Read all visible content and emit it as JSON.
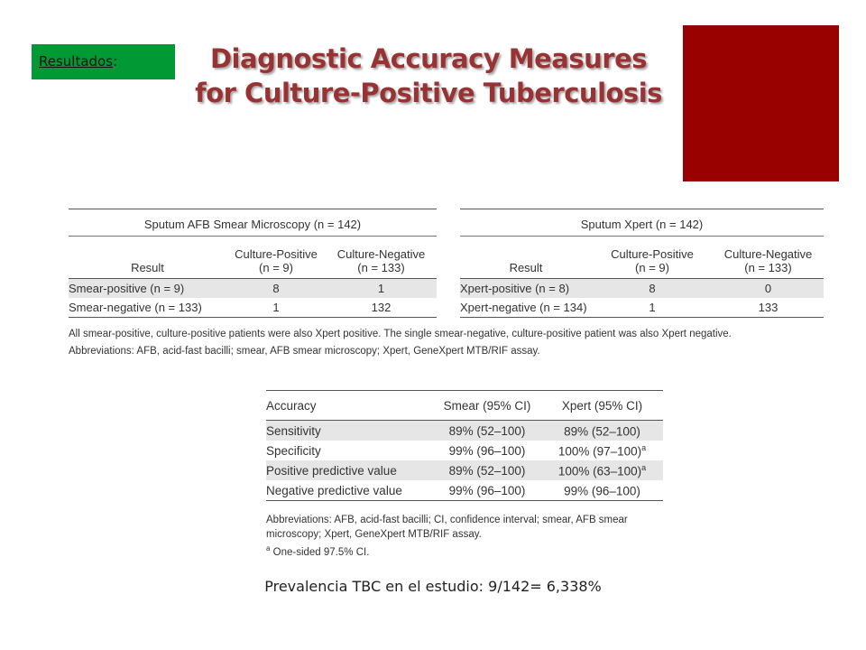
{
  "badge": {
    "label": "Resultados",
    "suffix": ":"
  },
  "title": {
    "line1": "Diagnostic Accuracy Measures",
    "line2": "for Culture-Positive  Tuberculosis"
  },
  "colors": {
    "badge": "#009933",
    "accent_block": "#990000",
    "title": "#993333",
    "row_shade": "#e6e6e6"
  },
  "smear_table": {
    "group_title": "Sputum AFB Smear Microscopy (n = 142)",
    "col_result": "Result",
    "col_pos_1": "Culture-Positive",
    "col_pos_2": "(n = 9)",
    "col_neg_1": "Culture-Negative",
    "col_neg_2": "(n = 133)",
    "rows": [
      {
        "label": "Smear-positive (n = 9)",
        "pos": "8",
        "neg": "1"
      },
      {
        "label": "Smear-negative (n = 133)",
        "pos": "1",
        "neg": "132"
      }
    ]
  },
  "xpert_table": {
    "group_title": "Sputum Xpert (n = 142)",
    "col_result": "Result",
    "col_pos_1": "Culture-Positive",
    "col_pos_2": "(n = 9)",
    "col_neg_1": "Culture-Negative",
    "col_neg_2": "(n = 133)",
    "rows": [
      {
        "label": "Xpert-positive (n = 8)",
        "pos": "8",
        "neg": "0"
      },
      {
        "label": "Xpert-negative (n = 134)",
        "pos": "1",
        "neg": "133"
      }
    ]
  },
  "notes_top": {
    "line1": "All smear-positive, culture-positive patients were also Xpert positive. The single smear-negative, culture-positive patient was also Xpert negative.",
    "line2": "Abbreviations: AFB, acid-fast bacilli; smear, AFB smear microscopy; Xpert, GeneXpert MTB/RIF assay."
  },
  "accuracy_table": {
    "col_accuracy": "Accuracy",
    "col_smear": "Smear (95% CI)",
    "col_xpert": "Xpert (95% CI)",
    "rows": [
      {
        "label": "Sensitivity",
        "smear": "89% (52–100)",
        "xpert": "89% (52–100)",
        "sup": ""
      },
      {
        "label": "Specificity",
        "smear": "99% (96–100)",
        "xpert": "100% (97–100)",
        "sup": "a"
      },
      {
        "label": "Positive predictive value",
        "smear": "89% (52–100)",
        "xpert": "100% (63–100)",
        "sup": "a"
      },
      {
        "label": "Negative predictive value",
        "smear": "99% (96–100)",
        "xpert": "99% (96–100)",
        "sup": ""
      }
    ]
  },
  "notes_bottom": {
    "line1": "Abbreviations: AFB, acid-fast bacilli; CI, confidence interval; smear, AFB smear",
    "line2": "microscopy; Xpert, GeneXpert MTB/RIF assay.",
    "footnote_mark": "a",
    "footnote_text": " One-sided 97.5% CI."
  },
  "prevalence": "Prevalencia TBC en el estudio: 9/142= 6,338%"
}
